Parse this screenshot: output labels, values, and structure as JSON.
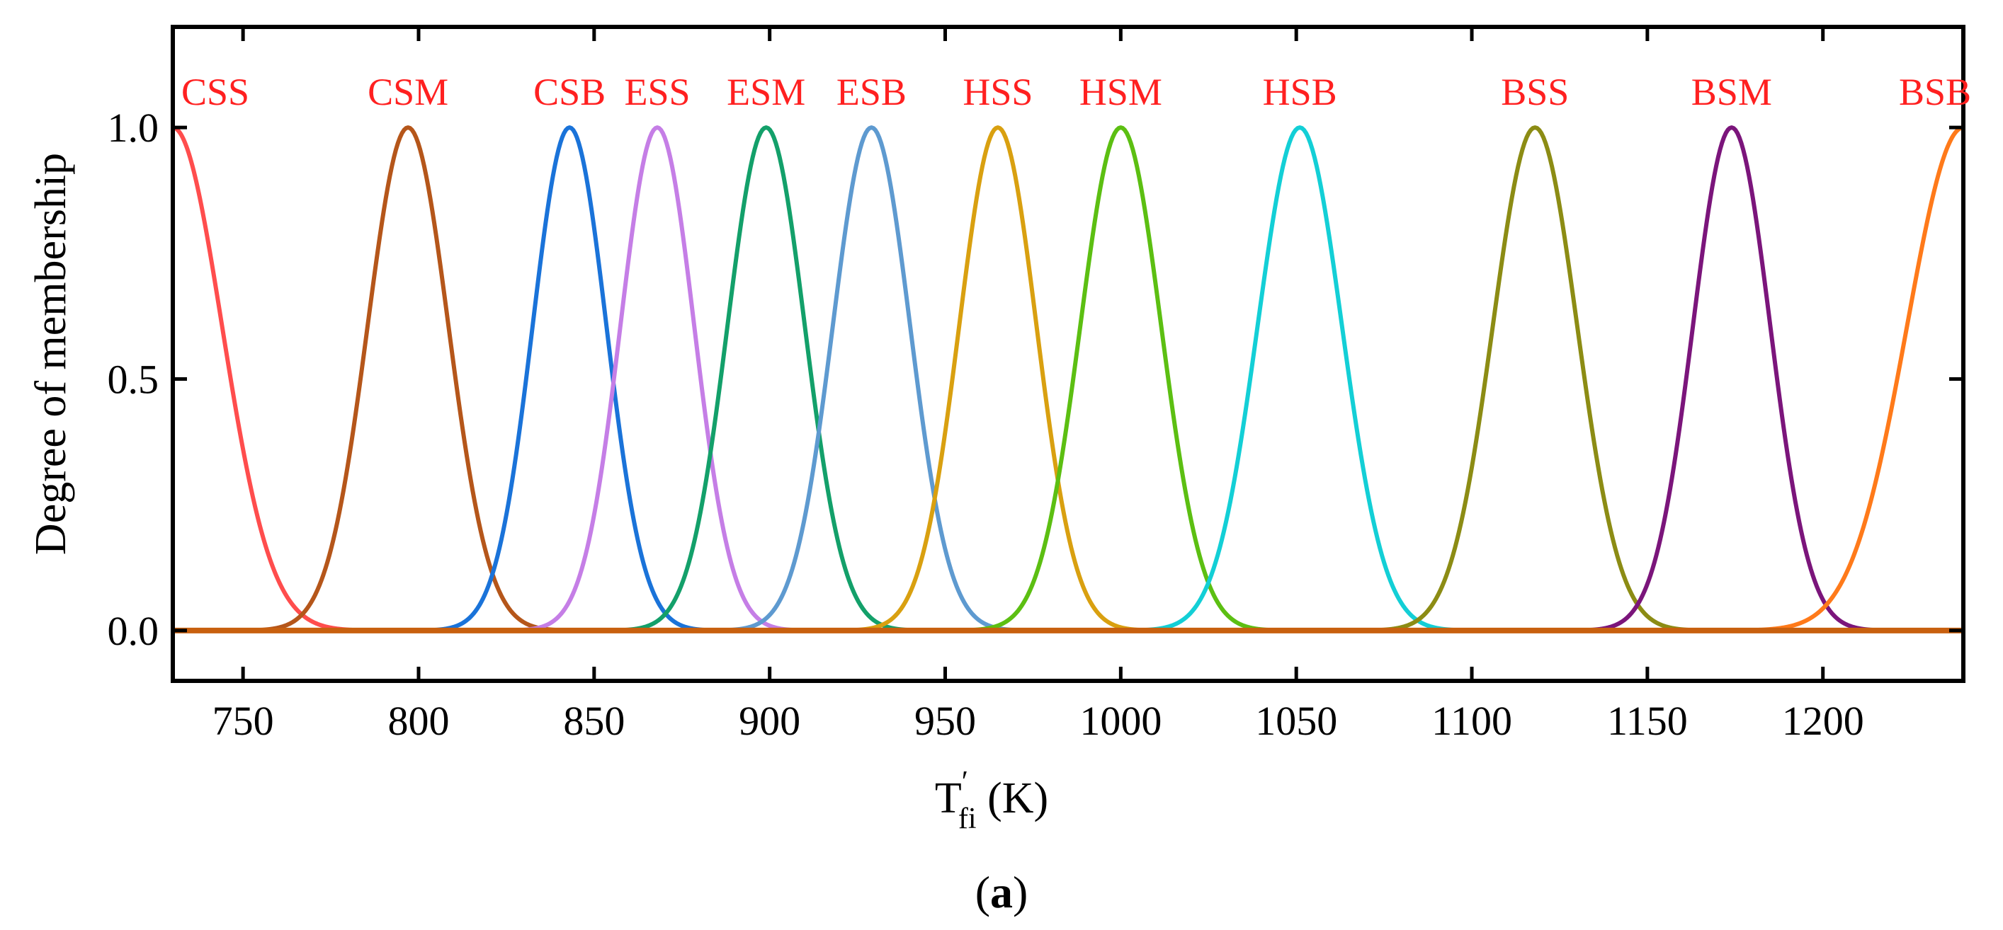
{
  "chart_data": {
    "type": "line",
    "title": "",
    "xlabel": "T′fi (K)",
    "xlabel_parts": {
      "main": "T",
      "prime": "′",
      "subscript": "fi",
      "unit": " (K)"
    },
    "ylabel": "Degree of membership",
    "xlim": [
      730,
      1240
    ],
    "ylim": [
      -0.1,
      1.2
    ],
    "x_ticks": [
      750,
      800,
      850,
      900,
      950,
      1000,
      1050,
      1100,
      1150,
      1200
    ],
    "x_tick_labels": [
      "750",
      "800",
      "850",
      "900",
      "950",
      "1000",
      "1050",
      "1100",
      "1150",
      "1200"
    ],
    "y_ticks": [
      0.0,
      0.5,
      1.0
    ],
    "y_tick_labels": [
      "0.0",
      "0.5",
      "1.0"
    ],
    "grid": false,
    "label_color": "#ff2020",
    "series": [
      {
        "name": "CSS",
        "center": 730,
        "sigma": 14,
        "color": "#ff4d4d"
      },
      {
        "name": "CSM",
        "center": 797,
        "sigma": 11.5,
        "color": "#b5561a"
      },
      {
        "name": "CSB",
        "center": 843,
        "sigma": 10.5,
        "color": "#1a73d9"
      },
      {
        "name": "ESS",
        "center": 868,
        "sigma": 10.5,
        "color": "#c57ee6"
      },
      {
        "name": "ESM",
        "center": 899,
        "sigma": 11,
        "color": "#13a06a"
      },
      {
        "name": "ESB",
        "center": 929,
        "sigma": 11,
        "color": "#5e9ad0"
      },
      {
        "name": "HSS",
        "center": 965,
        "sigma": 11,
        "color": "#d9a010"
      },
      {
        "name": "HSM",
        "center": 1000,
        "sigma": 11.5,
        "color": "#5cbf12"
      },
      {
        "name": "HSB",
        "center": 1051,
        "sigma": 12,
        "color": "#13cfd6"
      },
      {
        "name": "BSS",
        "center": 1118,
        "sigma": 12,
        "color": "#8c8c14"
      },
      {
        "name": "BSM",
        "center": 1174,
        "sigma": 11,
        "color": "#7b157b"
      },
      {
        "name": "BSB",
        "center": 1240,
        "sigma": 16,
        "color": "#ff7a1a"
      }
    ],
    "baseline_color": "#c8600f"
  },
  "caption": {
    "open": "(",
    "letter": "a",
    "close": ")"
  }
}
